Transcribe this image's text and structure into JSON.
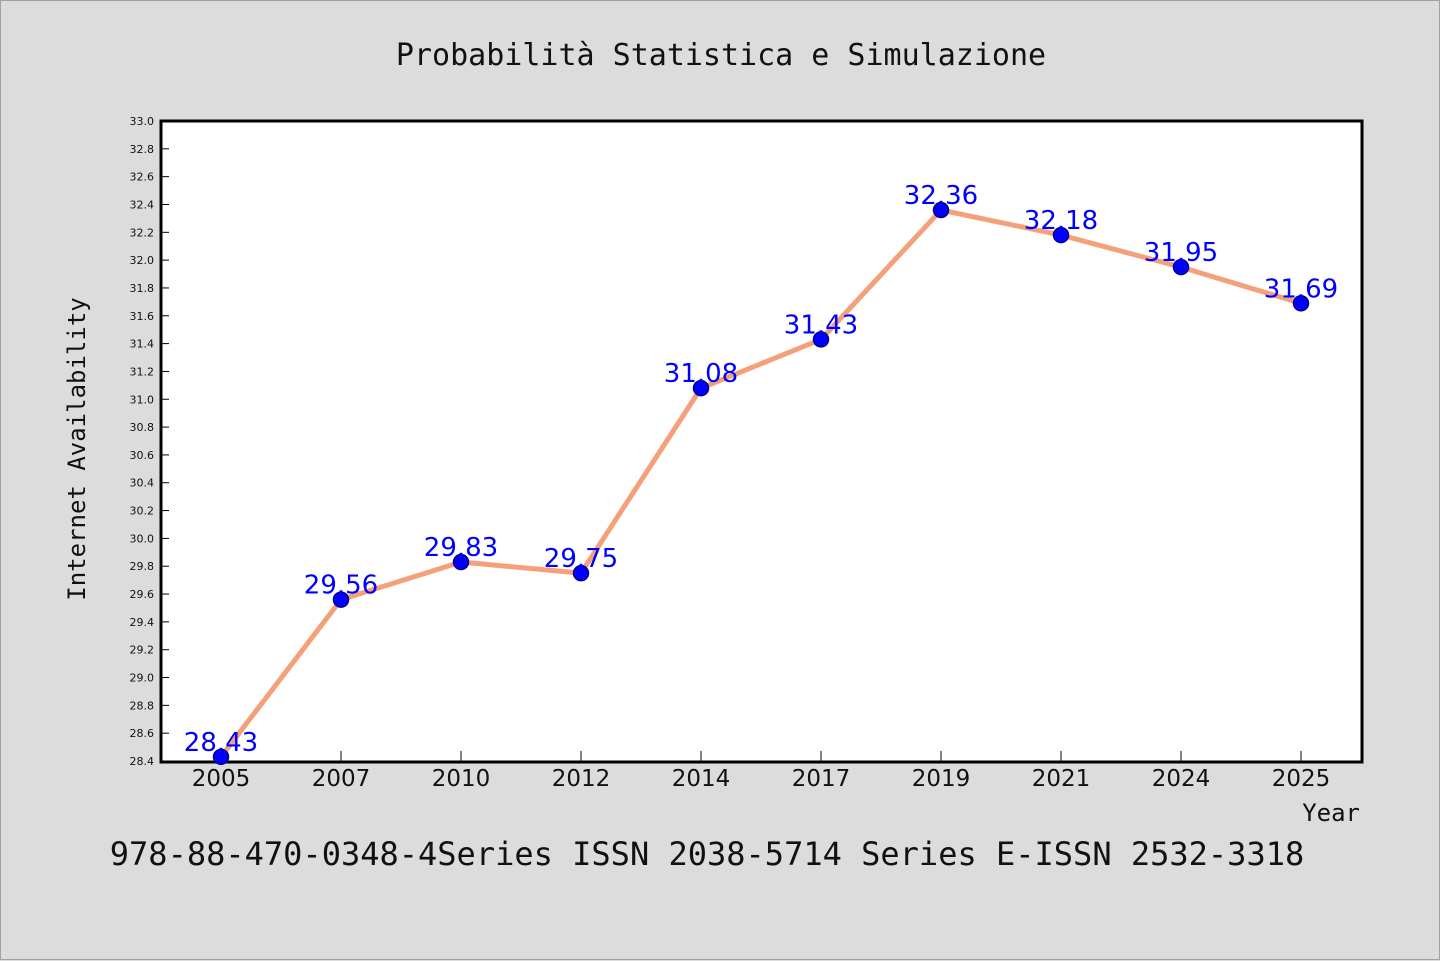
{
  "colors": {
    "background": "#dcdcdc",
    "plot_background": "#ffffff",
    "line": "#f4a07a",
    "marker": "#0000ff",
    "marker_edge": "#00008b",
    "data_label": "#0000ff"
  },
  "footer": "978-88-470-0348-4Series ISSN 2038-5714 Series E-ISSN 2532-3318",
  "chart_data": {
    "type": "line",
    "title": "Probabilità Statistica e Simulazione",
    "xlabel": "Year",
    "ylabel": "Internet Availability",
    "categories": [
      "2005",
      "2007",
      "2010",
      "2012",
      "2014",
      "2017",
      "2019",
      "2021",
      "2024",
      "2025"
    ],
    "series": [
      {
        "values": [
          28.43,
          29.56,
          29.83,
          29.75,
          31.08,
          31.43,
          32.36,
          32.18,
          31.95,
          31.69
        ],
        "labels": [
          "28.43",
          "29.56",
          "29.83",
          "29.75",
          "31.08",
          "31.43",
          "32.36",
          "32.18",
          "31.95",
          "31.69"
        ]
      }
    ],
    "ylim": [
      28.4,
      33.0
    ],
    "yticks": [
      "28.4",
      "28.6",
      "28.8",
      "29.0",
      "29.2",
      "29.4",
      "29.6",
      "29.8",
      "30.0",
      "30.2",
      "30.4",
      "30.6",
      "30.8",
      "31.0",
      "31.2",
      "31.4",
      "31.6",
      "31.8",
      "32.0",
      "32.2",
      "32.4",
      "32.6",
      "32.8",
      "33.0"
    ],
    "grid": false,
    "legend": "none"
  }
}
